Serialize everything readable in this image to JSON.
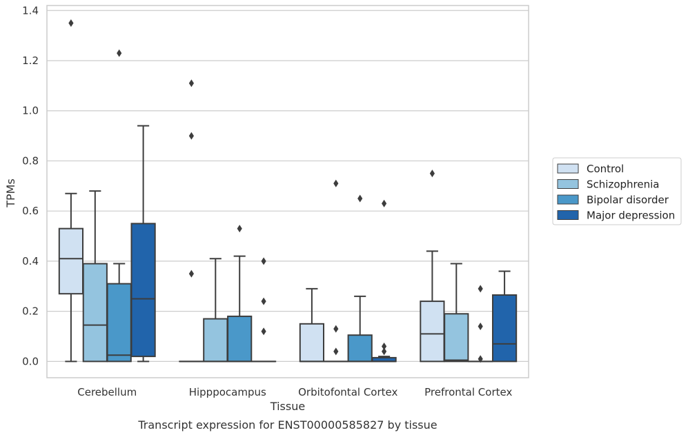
{
  "chart_data": {
    "type": "box",
    "caption": "Transcript expression for ENST00000585827 by tissue",
    "xlabel": "Tissue",
    "ylabel": "TPMs",
    "ylim": [
      -0.065,
      1.42
    ],
    "yticks": [
      0.0,
      0.2,
      0.4,
      0.6,
      0.8,
      1.0,
      1.2,
      1.4
    ],
    "ytick_labels": [
      "0.0",
      "0.2",
      "0.4",
      "0.6",
      "0.8",
      "1.0",
      "1.2",
      "1.4"
    ],
    "grid": "horizontal",
    "legend_position": "right",
    "categories": [
      "Cerebellum",
      "Hipppocampus",
      "Orbitofontal Cortex",
      "Prefrontal Cortex"
    ],
    "series": [
      {
        "name": "Control",
        "color": "#d0e1f2",
        "boxes": [
          {
            "whislo": 0.0,
            "q1": 0.27,
            "med": 0.41,
            "q3": 0.53,
            "whishi": 0.67,
            "fliers": [
              1.35
            ]
          },
          {
            "whislo": 0.0,
            "q1": 0.0,
            "med": 0.0,
            "q3": 0.0,
            "whishi": 0.0,
            "fliers": [
              0.35,
              0.9,
              1.11
            ]
          },
          {
            "whislo": 0.0,
            "q1": 0.0,
            "med": 0.0,
            "q3": 0.15,
            "whishi": 0.29,
            "fliers": []
          },
          {
            "whislo": 0.0,
            "q1": 0.0,
            "med": 0.11,
            "q3": 0.24,
            "whishi": 0.44,
            "fliers": [
              0.75
            ]
          }
        ]
      },
      {
        "name": "Schizophrenia",
        "color": "#94c4df",
        "boxes": [
          {
            "whislo": 0.0,
            "q1": 0.0,
            "med": 0.145,
            "q3": 0.39,
            "whishi": 0.68,
            "fliers": []
          },
          {
            "whislo": 0.0,
            "q1": 0.0,
            "med": 0.0,
            "q3": 0.17,
            "whishi": 0.41,
            "fliers": []
          },
          {
            "whislo": 0.0,
            "q1": 0.0,
            "med": 0.0,
            "q3": 0.0,
            "whishi": 0.0,
            "fliers": [
              0.04,
              0.13,
              0.71
            ]
          },
          {
            "whislo": 0.0,
            "q1": 0.0,
            "med": 0.005,
            "q3": 0.19,
            "whishi": 0.39,
            "fliers": []
          }
        ]
      },
      {
        "name": "Bipolar disorder",
        "color": "#4a98c9",
        "boxes": [
          {
            "whislo": 0.0,
            "q1": 0.0,
            "med": 0.025,
            "q3": 0.31,
            "whishi": 0.39,
            "fliers": [
              1.23
            ]
          },
          {
            "whislo": 0.0,
            "q1": 0.0,
            "med": 0.0,
            "q3": 0.18,
            "whishi": 0.42,
            "fliers": [
              0.53
            ]
          },
          {
            "whislo": 0.0,
            "q1": 0.0,
            "med": 0.0,
            "q3": 0.105,
            "whishi": 0.26,
            "fliers": [
              0.65
            ]
          },
          {
            "whislo": 0.0,
            "q1": 0.0,
            "med": 0.0,
            "q3": 0.0,
            "whishi": 0.0,
            "fliers": [
              0.01,
              0.14,
              0.29
            ]
          }
        ]
      },
      {
        "name": "Major depression",
        "color": "#2164ab",
        "boxes": [
          {
            "whislo": 0.0,
            "q1": 0.02,
            "med": 0.25,
            "q3": 0.55,
            "whishi": 0.94,
            "fliers": []
          },
          {
            "whislo": 0.0,
            "q1": 0.0,
            "med": 0.0,
            "q3": 0.0,
            "whishi": 0.0,
            "fliers": [
              0.12,
              0.24,
              0.4
            ]
          },
          {
            "whislo": 0.0,
            "q1": 0.0,
            "med": 0.0,
            "q3": 0.015,
            "whishi": 0.02,
            "fliers": [
              0.04,
              0.06,
              0.63
            ]
          },
          {
            "whislo": 0.0,
            "q1": 0.0,
            "med": 0.07,
            "q3": 0.265,
            "whishi": 0.36,
            "fliers": []
          }
        ]
      }
    ]
  }
}
